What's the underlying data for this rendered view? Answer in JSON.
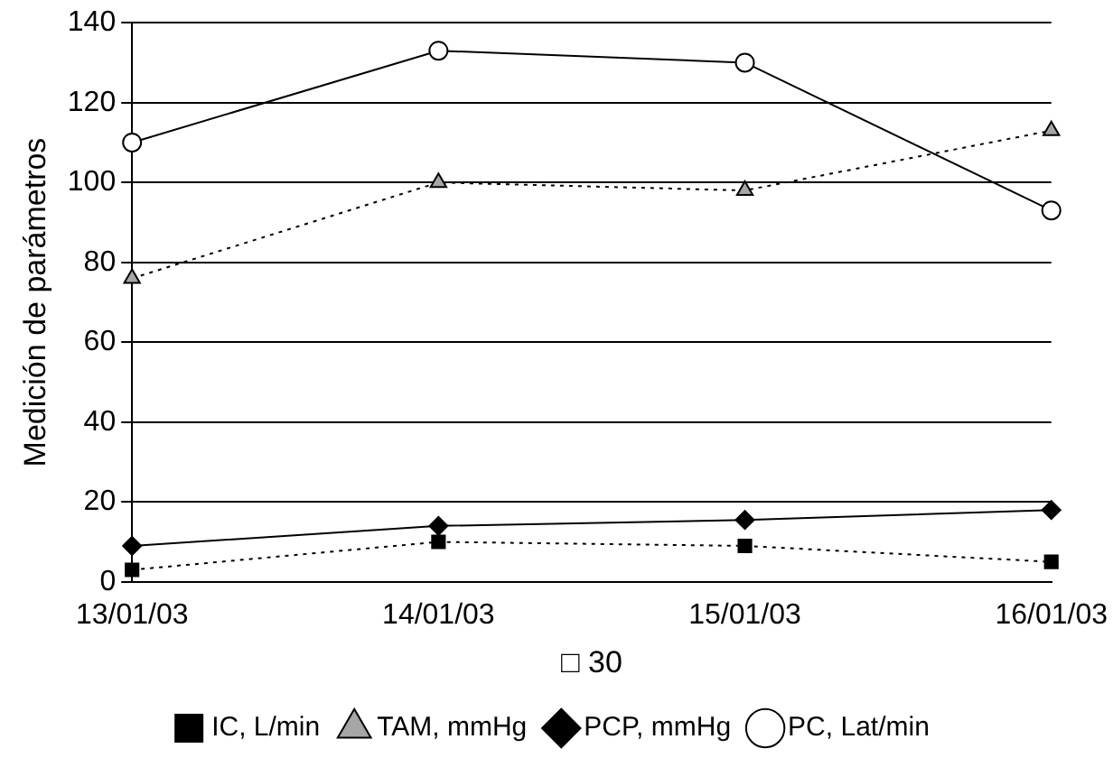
{
  "chart_data": {
    "type": "line",
    "xlabel": "□ 30",
    "ylabel": "Medición de parámetros",
    "categories": [
      "13/01/03",
      "14/01/03",
      "15/01/03",
      "16/01/03"
    ],
    "ylim": [
      0,
      140
    ],
    "yticks": [
      0,
      20,
      40,
      60,
      80,
      100,
      120,
      140
    ],
    "grid": "y",
    "legend": "bottom",
    "series": [
      {
        "name": "IC, L/min",
        "color": "#000000",
        "marker": "square",
        "line_style": "dotted",
        "values": [
          3,
          10,
          9,
          5
        ]
      },
      {
        "name": "TAM, mmHg",
        "color": "#a6a6a6",
        "marker": "triangle",
        "line_style": "dotted",
        "values": [
          76,
          100,
          98,
          113
        ]
      },
      {
        "name": "PCP, mmHg",
        "color": "#000000",
        "marker": "diamond",
        "line_style": "solid",
        "values": [
          9,
          14,
          15.5,
          18
        ]
      },
      {
        "name": "PC, Lat/min",
        "color": "#ffffff",
        "marker": "circle",
        "line_style": "solid",
        "values": [
          110,
          133,
          130,
          93
        ]
      }
    ]
  }
}
